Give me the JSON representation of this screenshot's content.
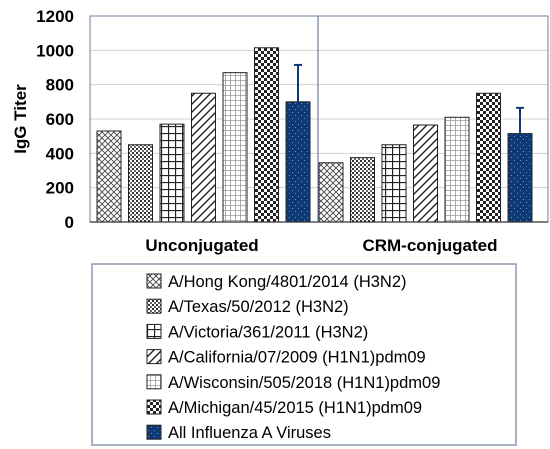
{
  "chart_data": {
    "type": "bar",
    "title": "",
    "xlabel": "",
    "ylabel": "IgG Titer",
    "ylim": [
      0,
      1200
    ],
    "yticks": [
      0,
      200,
      400,
      600,
      800,
      1000,
      1200
    ],
    "grid": "horizontal",
    "legend_position": "bottom",
    "categories": [
      "Unconjugated",
      "CRM-conjugated"
    ],
    "series": [
      {
        "name": "A/Hong Kong/4801/2014 (H3N2)",
        "pattern": "diagonal-cross",
        "color": "#000000",
        "values": [
          530,
          345
        ]
      },
      {
        "name": "A/Texas/50/2012 (H3N2)",
        "pattern": "dots-dense",
        "color": "#000000",
        "values": [
          450,
          375
        ]
      },
      {
        "name": "A/Victoria/361/2011 (H3N2)",
        "pattern": "grid",
        "color": "#000000",
        "values": [
          570,
          450
        ]
      },
      {
        "name": "A/California/07/2009 (H1N1)pdm09",
        "pattern": "diagonal",
        "color": "#000000",
        "values": [
          750,
          565
        ]
      },
      {
        "name": "A/Wisconsin/505/2018 (H1N1)pdm09",
        "pattern": "fine-grid",
        "color": "#000000",
        "values": [
          870,
          610
        ]
      },
      {
        "name": "A/Michigan/45/2015 (H1N1)pdm09",
        "pattern": "checker",
        "color": "#000000",
        "values": [
          1015,
          750
        ]
      },
      {
        "name": "All Influenza A Viruses",
        "pattern": "dotted-solid",
        "color": "#0d3a75",
        "values": [
          700,
          515
        ],
        "error": [
          215,
          150
        ]
      }
    ]
  }
}
